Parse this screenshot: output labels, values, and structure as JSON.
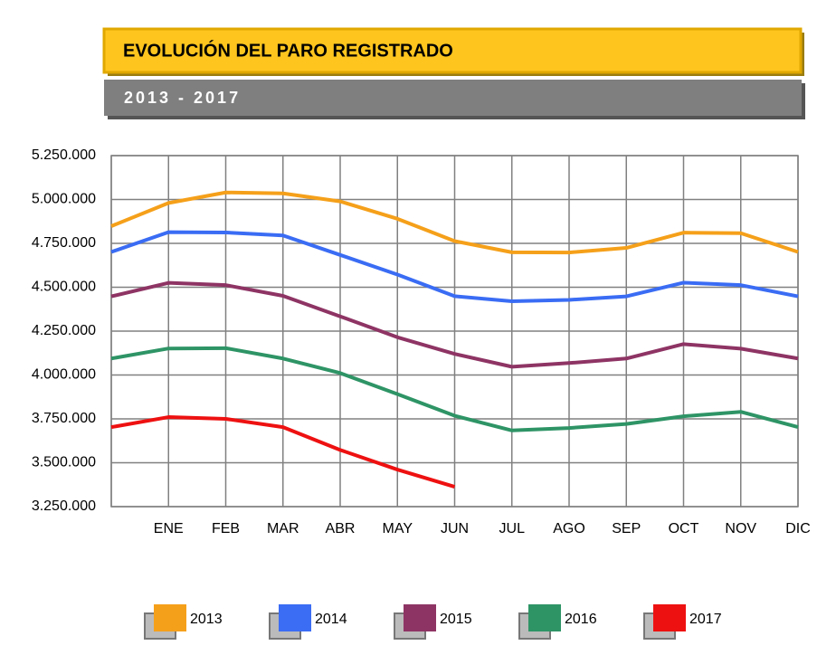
{
  "chart_data": {
    "type": "line",
    "title": "EVOLUCIÓN DEL PARO REGISTRADO",
    "subtitle": "2013 - 2017",
    "categories": [
      null,
      "ENE",
      "FEB",
      "MAR",
      "ABR",
      "MAY",
      "JUN",
      "JUL",
      "AGO",
      "SEP",
      "OCT",
      "NOV",
      "DIC"
    ],
    "series": [
      {
        "name": "2013",
        "color": "#f5a01a",
        "values": [
          4848000,
          4980000,
          5040000,
          5035000,
          4989000,
          4890000,
          4763000,
          4699000,
          4698000,
          4724000,
          4811000,
          4808000,
          4701000
        ]
      },
      {
        "name": "2014",
        "color": "#3a6cf4",
        "values": [
          4701000,
          4814000,
          4812000,
          4795000,
          4684000,
          4572000,
          4449000,
          4420000,
          4428000,
          4448000,
          4526000,
          4512000,
          4448000
        ]
      },
      {
        "name": "2015",
        "color": "#8e3464",
        "values": [
          4448000,
          4525000,
          4512000,
          4451000,
          4334000,
          4215000,
          4120000,
          4047000,
          4068000,
          4094000,
          4176000,
          4150000,
          4094000
        ]
      },
      {
        "name": "2016",
        "color": "#2e9466",
        "values": [
          4094000,
          4151000,
          4153000,
          4094000,
          4011000,
          3891000,
          3768000,
          3684000,
          3698000,
          3721000,
          3765000,
          3790000,
          3703000
        ]
      },
      {
        "name": "2017",
        "color": "#ee1111",
        "values": [
          3703000,
          3760000,
          3750000,
          3703000,
          3573000,
          3461000,
          3363000,
          null,
          null,
          null,
          null,
          null,
          null
        ]
      }
    ],
    "ylim": [
      3250000,
      5250000
    ],
    "yticks": [
      {
        "value": 3250000,
        "label": "3.250.000"
      },
      {
        "value": 3500000,
        "label": "3.500.000"
      },
      {
        "value": 3750000,
        "label": "3.750.000"
      },
      {
        "value": 4000000,
        "label": "4.000.000"
      },
      {
        "value": 4250000,
        "label": "4.250.000"
      },
      {
        "value": 4500000,
        "label": "4.500.000"
      },
      {
        "value": 4750000,
        "label": "4.750.000"
      },
      {
        "value": 5000000,
        "label": "5.000.000"
      },
      {
        "value": 5250000,
        "label": "5.250.000"
      }
    ],
    "grid": true,
    "legend": "bottom"
  }
}
